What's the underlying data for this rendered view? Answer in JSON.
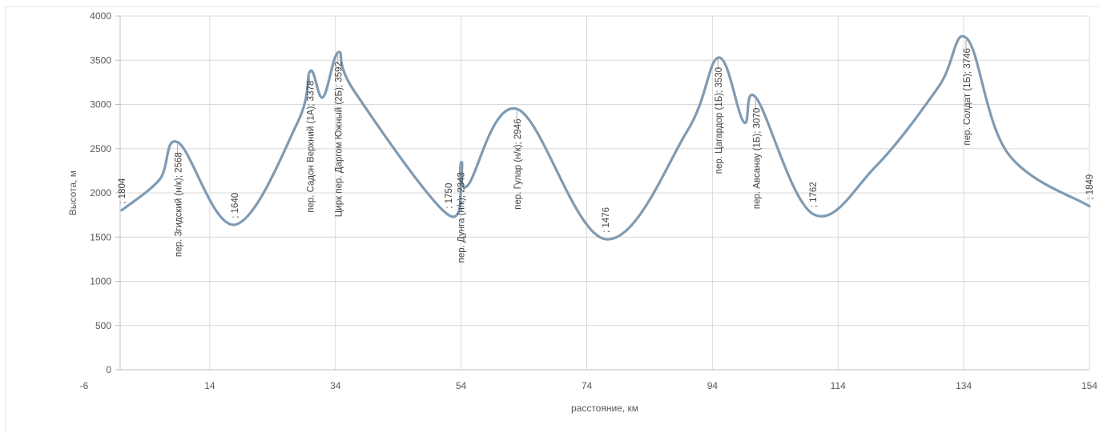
{
  "chart_data": {
    "type": "line",
    "smooth": true,
    "xlabel": "расстояние, км",
    "ylabel": "Высота, м",
    "xlim": [
      -6,
      154
    ],
    "ylim": [
      0,
      4000
    ],
    "x_ticks": [
      "-6",
      "14",
      "34",
      "54",
      "74",
      "94",
      "114",
      "134",
      "154"
    ],
    "y_ticks": [
      "0",
      "500",
      "1000",
      "1500",
      "2000",
      "2500",
      "3000",
      "3500",
      "4000"
    ],
    "grid": true,
    "legend": "none",
    "line_color": "#7f9bb3",
    "series": [
      {
        "points": [
          {
            "x": 0,
            "y": 1804,
            "label": "; 1804"
          },
          {
            "x": 6,
            "y": 2150,
            "label": ""
          },
          {
            "x": 9,
            "y": 2568,
            "label": "пер. Згидский (н/к); 2568"
          },
          {
            "x": 18,
            "y": 1640,
            "label": "; 1640"
          },
          {
            "x": 28,
            "y": 2800,
            "label": ""
          },
          {
            "x": 30,
            "y": 3378,
            "label": "пер. Садон Верхний (1А); 3378"
          },
          {
            "x": 32,
            "y": 3080,
            "label": ""
          },
          {
            "x": 34.5,
            "y": 3592,
            "label": "Цирк пер. Даргом Южный (2Б); 3592"
          },
          {
            "x": 37,
            "y": 3150,
            "label": ""
          },
          {
            "x": 52,
            "y": 1750,
            "label": "; 1750"
          },
          {
            "x": 54,
            "y": 2343,
            "label": "пер. Дунга (н/к); 2343"
          },
          {
            "x": 55,
            "y": 2080,
            "label": ""
          },
          {
            "x": 63,
            "y": 2946,
            "label": "пер. Гулар (н/к); 2946"
          },
          {
            "x": 77,
            "y": 1476,
            "label": "; 1476"
          },
          {
            "x": 90,
            "y": 2700,
            "label": ""
          },
          {
            "x": 95,
            "y": 3530,
            "label": "пер. Цагардор (1Б); 3530"
          },
          {
            "x": 99,
            "y": 2800,
            "label": ""
          },
          {
            "x": 101,
            "y": 3070,
            "label": "пер. Авсанау (1Б); 3070"
          },
          {
            "x": 110,
            "y": 1762,
            "label": "; 1762"
          },
          {
            "x": 120,
            "y": 2300,
            "label": ""
          },
          {
            "x": 130,
            "y": 3200,
            "label": ""
          },
          {
            "x": 134.5,
            "y": 3746,
            "label": "пер. Солдат (1Б); 3746"
          },
          {
            "x": 141,
            "y": 2450,
            "label": ""
          },
          {
            "x": 154,
            "y": 1849,
            "label": "; 1849"
          }
        ]
      }
    ]
  }
}
